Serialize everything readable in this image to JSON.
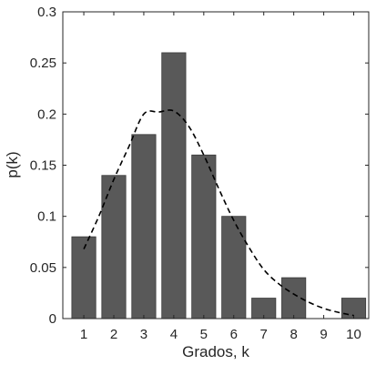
{
  "chart_data": {
    "type": "bar",
    "title": "",
    "xlabel": "Grados, k",
    "ylabel": "p(k)",
    "categories": [
      "1",
      "2",
      "3",
      "4",
      "5",
      "6",
      "7",
      "8",
      "9",
      "10"
    ],
    "x": [
      1,
      2,
      3,
      4,
      5,
      6,
      7,
      8,
      9,
      10
    ],
    "values": [
      0.08,
      0.14,
      0.18,
      0.26,
      0.16,
      0.1,
      0.02,
      0.04,
      0,
      0.02
    ],
    "ylim": [
      0,
      0.3
    ],
    "xlim": [
      0.3,
      10.5
    ],
    "y_ticks": [
      0,
      0.05,
      0.1,
      0.15,
      0.2,
      0.25,
      0.3
    ],
    "y_tick_labels": [
      "0",
      "0.05",
      "0.1",
      "0.15",
      "0.2",
      "0.25",
      "0.3"
    ],
    "x_ticks": [
      1,
      2,
      3,
      4,
      5,
      6,
      7,
      8,
      9,
      10
    ],
    "x_tick_labels": [
      "1",
      "2",
      "3",
      "4",
      "5",
      "6",
      "7",
      "8",
      "9",
      "10"
    ],
    "fit_curve": {
      "style": "dashed",
      "x": [
        1,
        1.5,
        2,
        2.5,
        3,
        3.5,
        4,
        4.5,
        5,
        5.5,
        6,
        6.5,
        7,
        7.5,
        8,
        8.5,
        9,
        9.5,
        10
      ],
      "y": [
        0.068,
        0.1,
        0.136,
        0.168,
        0.2,
        0.202,
        0.203,
        0.188,
        0.16,
        0.127,
        0.096,
        0.07,
        0.048,
        0.034,
        0.024,
        0.016,
        0.01,
        0.006,
        0.003
      ]
    },
    "grid": false,
    "box": true,
    "colors": {
      "bar": "#595959",
      "bar_edge": "#3a3a3a",
      "curve": "#000000",
      "axis": "#262626"
    }
  }
}
